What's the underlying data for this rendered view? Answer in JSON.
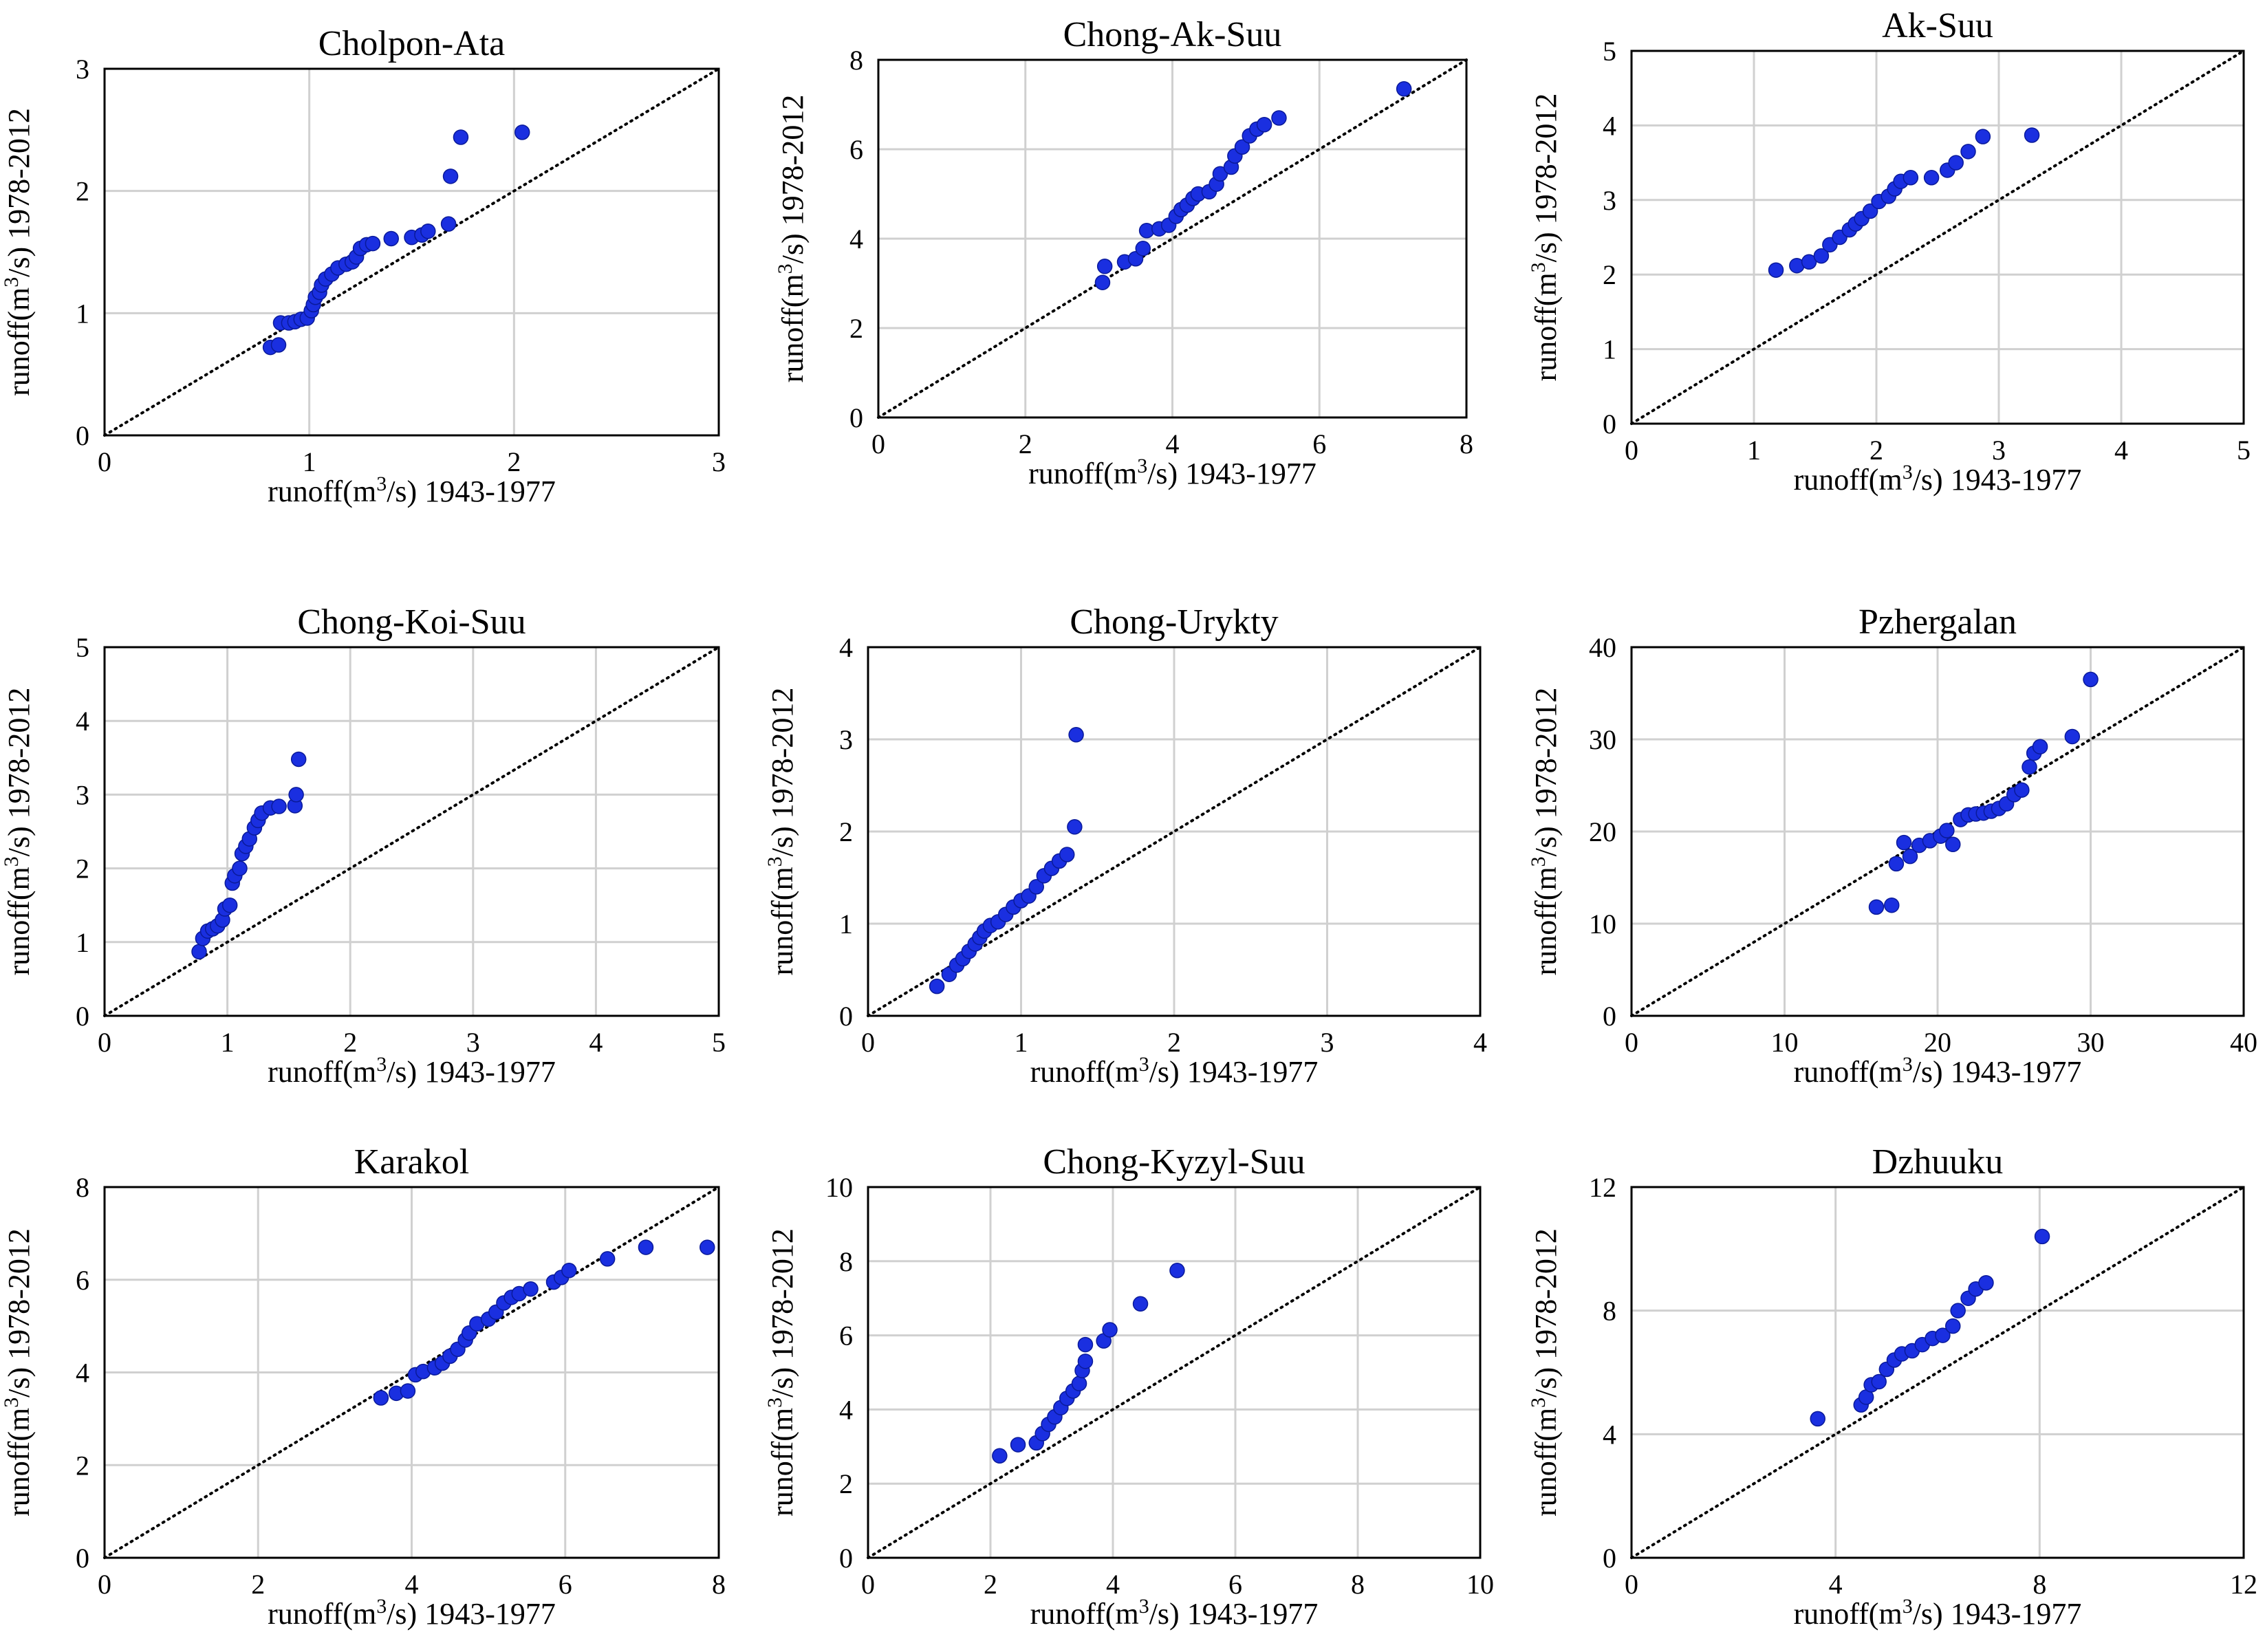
{
  "figure": {
    "x_label_prefix": "runoff(m",
    "x_label_unit_sup": "3",
    "x_label_suffix": "/s) 1943-1977",
    "y_label_prefix": "runoff(m",
    "y_label_unit_sup": "3",
    "y_label_suffix": "/s) 1978-2012",
    "point_color": "#1a2fe0",
    "point_stroke": "#0a1a9a",
    "grid_color": "#d0d0d0",
    "diagonal_color": "#000000"
  },
  "chart_data": [
    {
      "type": "scatter",
      "title": "Cholpon-Ata",
      "xlabel": "runoff(m3/s) 1943-1977",
      "ylabel": "runoff(m3/s) 1978-2012",
      "xlim": [
        0,
        3
      ],
      "ylim": [
        0,
        3
      ],
      "xticks": [
        0,
        1,
        2,
        3
      ],
      "yticks": [
        0,
        1,
        2,
        3
      ],
      "grid": true,
      "reference_line": "y = x (dotted)",
      "points": [
        [
          0.81,
          0.72
        ],
        [
          0.85,
          0.74
        ],
        [
          0.86,
          0.92
        ],
        [
          0.9,
          0.92
        ],
        [
          0.93,
          0.93
        ],
        [
          0.96,
          0.95
        ],
        [
          0.99,
          0.96
        ],
        [
          1.01,
          1.02
        ],
        [
          1.02,
          1.07
        ],
        [
          1.03,
          1.13
        ],
        [
          1.05,
          1.17
        ],
        [
          1.06,
          1.23
        ],
        [
          1.08,
          1.28
        ],
        [
          1.11,
          1.32
        ],
        [
          1.14,
          1.37
        ],
        [
          1.18,
          1.4
        ],
        [
          1.21,
          1.42
        ],
        [
          1.23,
          1.46
        ],
        [
          1.25,
          1.53
        ],
        [
          1.28,
          1.56
        ],
        [
          1.31,
          1.57
        ],
        [
          1.4,
          1.61
        ],
        [
          1.5,
          1.62
        ],
        [
          1.55,
          1.64
        ],
        [
          1.58,
          1.67
        ],
        [
          1.68,
          1.73
        ],
        [
          1.69,
          2.12
        ],
        [
          1.74,
          2.44
        ],
        [
          2.04,
          2.48
        ]
      ]
    },
    {
      "type": "scatter",
      "title": "Chong-Ak-Suu",
      "xlabel": "runoff(m3/s) 1943-1977",
      "ylabel": "runoff(m3/s) 1978-2012",
      "xlim": [
        0,
        8
      ],
      "ylim": [
        0,
        8
      ],
      "xticks": [
        0,
        2,
        4,
        6,
        8
      ],
      "yticks": [
        0,
        2,
        4,
        6,
        8
      ],
      "grid": true,
      "reference_line": "y = x (dotted)",
      "points": [
        [
          3.05,
          3.02
        ],
        [
          3.08,
          3.38
        ],
        [
          3.35,
          3.48
        ],
        [
          3.5,
          3.55
        ],
        [
          3.6,
          3.78
        ],
        [
          3.65,
          4.18
        ],
        [
          3.82,
          4.22
        ],
        [
          3.95,
          4.3
        ],
        [
          4.05,
          4.5
        ],
        [
          4.12,
          4.65
        ],
        [
          4.2,
          4.75
        ],
        [
          4.28,
          4.9
        ],
        [
          4.35,
          5.0
        ],
        [
          4.5,
          5.05
        ],
        [
          4.6,
          5.22
        ],
        [
          4.65,
          5.45
        ],
        [
          4.8,
          5.6
        ],
        [
          4.85,
          5.85
        ],
        [
          4.95,
          6.05
        ],
        [
          5.05,
          6.3
        ],
        [
          5.15,
          6.45
        ],
        [
          5.25,
          6.55
        ],
        [
          5.45,
          6.7
        ],
        [
          7.15,
          7.35
        ]
      ]
    },
    {
      "type": "scatter",
      "title": "Ak-Suu",
      "xlabel": "runoff(m3/s) 1943-1977",
      "ylabel": "runoff(m3/s) 1978-2012",
      "xlim": [
        0,
        5
      ],
      "ylim": [
        0,
        5
      ],
      "xticks": [
        0,
        1,
        2,
        3,
        4,
        5
      ],
      "yticks": [
        0,
        1,
        2,
        3,
        4,
        5
      ],
      "grid": true,
      "reference_line": "y = x (dotted)",
      "points": [
        [
          1.18,
          2.06
        ],
        [
          1.35,
          2.12
        ],
        [
          1.45,
          2.17
        ],
        [
          1.55,
          2.25
        ],
        [
          1.62,
          2.4
        ],
        [
          1.7,
          2.5
        ],
        [
          1.78,
          2.6
        ],
        [
          1.83,
          2.68
        ],
        [
          1.88,
          2.75
        ],
        [
          1.95,
          2.85
        ],
        [
          2.02,
          2.98
        ],
        [
          2.1,
          3.05
        ],
        [
          2.15,
          3.15
        ],
        [
          2.2,
          3.25
        ],
        [
          2.28,
          3.3
        ],
        [
          2.45,
          3.3
        ],
        [
          2.58,
          3.4
        ],
        [
          2.65,
          3.5
        ],
        [
          2.75,
          3.65
        ],
        [
          2.87,
          3.85
        ],
        [
          3.27,
          3.87
        ]
      ]
    },
    {
      "type": "scatter",
      "title": "Chong-Koi-Suu",
      "xlabel": "runoff(m3/s) 1943-1977",
      "ylabel": "runoff(m3/s) 1978-2012",
      "xlim": [
        0,
        5
      ],
      "ylim": [
        0,
        5
      ],
      "xticks": [
        0,
        1,
        2,
        3,
        4,
        5
      ],
      "yticks": [
        0,
        1,
        2,
        3,
        4,
        5
      ],
      "grid": true,
      "reference_line": "y = x (dotted)",
      "points": [
        [
          0.77,
          0.87
        ],
        [
          0.8,
          1.05
        ],
        [
          0.84,
          1.15
        ],
        [
          0.88,
          1.18
        ],
        [
          0.92,
          1.22
        ],
        [
          0.96,
          1.3
        ],
        [
          0.98,
          1.45
        ],
        [
          1.02,
          1.5
        ],
        [
          1.04,
          1.8
        ],
        [
          1.06,
          1.9
        ],
        [
          1.1,
          2.0
        ],
        [
          1.12,
          2.2
        ],
        [
          1.15,
          2.3
        ],
        [
          1.18,
          2.4
        ],
        [
          1.22,
          2.55
        ],
        [
          1.25,
          2.65
        ],
        [
          1.28,
          2.75
        ],
        [
          1.35,
          2.82
        ],
        [
          1.42,
          2.84
        ],
        [
          1.55,
          2.85
        ],
        [
          1.56,
          3.0
        ],
        [
          1.58,
          3.48
        ]
      ]
    },
    {
      "type": "scatter",
      "title": "Chong-Urykty",
      "xlabel": "runoff(m3/s) 1943-1977",
      "ylabel": "runoff(m3/s) 1978-2012",
      "xlim": [
        0,
        4
      ],
      "ylim": [
        0,
        4
      ],
      "xticks": [
        0,
        1,
        2,
        3,
        4
      ],
      "yticks": [
        0,
        1,
        2,
        3,
        4
      ],
      "grid": true,
      "reference_line": "y = x (dotted)",
      "points": [
        [
          0.45,
          0.32
        ],
        [
          0.53,
          0.45
        ],
        [
          0.58,
          0.55
        ],
        [
          0.62,
          0.62
        ],
        [
          0.66,
          0.7
        ],
        [
          0.7,
          0.78
        ],
        [
          0.73,
          0.85
        ],
        [
          0.76,
          0.92
        ],
        [
          0.8,
          0.98
        ],
        [
          0.85,
          1.02
        ],
        [
          0.9,
          1.1
        ],
        [
          0.95,
          1.18
        ],
        [
          1.0,
          1.25
        ],
        [
          1.05,
          1.3
        ],
        [
          1.1,
          1.4
        ],
        [
          1.15,
          1.52
        ],
        [
          1.2,
          1.6
        ],
        [
          1.25,
          1.68
        ],
        [
          1.3,
          1.75
        ],
        [
          1.35,
          2.05
        ],
        [
          1.36,
          3.05
        ]
      ]
    },
    {
      "type": "scatter",
      "title": "Pzhergalan",
      "xlabel": "runoff(m3/s) 1943-1977",
      "ylabel": "runoff(m3/s) 1978-2012",
      "xlim": [
        0,
        40
      ],
      "ylim": [
        0,
        40
      ],
      "xticks": [
        0,
        10,
        20,
        30,
        40
      ],
      "yticks": [
        0,
        10,
        20,
        30,
        40
      ],
      "grid": true,
      "reference_line": "y = x (dotted)",
      "points": [
        [
          16.0,
          11.8
        ],
        [
          17.0,
          12.0
        ],
        [
          17.3,
          16.5
        ],
        [
          17.8,
          18.8
        ],
        [
          18.2,
          17.3
        ],
        [
          18.8,
          18.5
        ],
        [
          19.5,
          19.0
        ],
        [
          20.2,
          19.5
        ],
        [
          20.6,
          20.1
        ],
        [
          21.0,
          18.6
        ],
        [
          21.5,
          21.3
        ],
        [
          22.0,
          21.8
        ],
        [
          22.5,
          21.9
        ],
        [
          23.0,
          22.0
        ],
        [
          23.5,
          22.2
        ],
        [
          24.0,
          22.5
        ],
        [
          24.5,
          23.0
        ],
        [
          25.0,
          24.0
        ],
        [
          25.5,
          24.5
        ],
        [
          26.0,
          27.0
        ],
        [
          26.3,
          28.5
        ],
        [
          26.7,
          29.2
        ],
        [
          28.8,
          30.3
        ],
        [
          30.0,
          36.5
        ]
      ]
    },
    {
      "type": "scatter",
      "title": "Karakol",
      "xlabel": "runoff(m3/s) 1943-1977",
      "ylabel": "runoff(m3/s) 1978-2012",
      "xlim": [
        0,
        8
      ],
      "ylim": [
        0,
        8
      ],
      "xticks": [
        0,
        2,
        4,
        6,
        8
      ],
      "yticks": [
        0,
        2,
        4,
        6,
        8
      ],
      "grid": true,
      "reference_line": "y = x (dotted)",
      "points": [
        [
          3.6,
          3.45
        ],
        [
          3.8,
          3.55
        ],
        [
          3.95,
          3.6
        ],
        [
          4.05,
          3.95
        ],
        [
          4.15,
          4.02
        ],
        [
          4.3,
          4.1
        ],
        [
          4.4,
          4.2
        ],
        [
          4.5,
          4.35
        ],
        [
          4.6,
          4.5
        ],
        [
          4.7,
          4.7
        ],
        [
          4.75,
          4.85
        ],
        [
          4.85,
          5.05
        ],
        [
          5.0,
          5.15
        ],
        [
          5.1,
          5.3
        ],
        [
          5.2,
          5.5
        ],
        [
          5.3,
          5.62
        ],
        [
          5.4,
          5.7
        ],
        [
          5.55,
          5.8
        ],
        [
          5.85,
          5.95
        ],
        [
          5.95,
          6.05
        ],
        [
          6.05,
          6.2
        ],
        [
          6.55,
          6.45
        ],
        [
          7.05,
          6.7
        ],
        [
          7.85,
          6.7
        ]
      ]
    },
    {
      "type": "scatter",
      "title": "Chong-Kyzyl-Suu",
      "xlabel": "runoff(m3/s) 1943-1977",
      "ylabel": "runoff(m3/s) 1978-2012",
      "xlim": [
        0,
        10
      ],
      "ylim": [
        0,
        10
      ],
      "xticks": [
        0,
        2,
        4,
        6,
        8,
        10
      ],
      "yticks": [
        0,
        2,
        4,
        6,
        8,
        10
      ],
      "grid": true,
      "reference_line": "y = x (dotted)",
      "points": [
        [
          2.15,
          2.75
        ],
        [
          2.45,
          3.05
        ],
        [
          2.75,
          3.1
        ],
        [
          2.85,
          3.35
        ],
        [
          2.95,
          3.6
        ],
        [
          3.05,
          3.8
        ],
        [
          3.15,
          4.05
        ],
        [
          3.25,
          4.3
        ],
        [
          3.35,
          4.5
        ],
        [
          3.45,
          4.7
        ],
        [
          3.5,
          5.05
        ],
        [
          3.55,
          5.3
        ],
        [
          3.55,
          5.75
        ],
        [
          3.85,
          5.85
        ],
        [
          3.95,
          6.15
        ],
        [
          4.45,
          6.85
        ],
        [
          5.05,
          7.75
        ]
      ]
    },
    {
      "type": "scatter",
      "title": "Dzhuuku",
      "xlabel": "runoff(m3/s) 1943-1977",
      "ylabel": "runoff(m3/s) 1978-2012",
      "xlim": [
        0,
        12
      ],
      "ylim": [
        0,
        12
      ],
      "xticks": [
        0,
        4,
        8,
        12
      ],
      "yticks": [
        0,
        4,
        8,
        12
      ],
      "grid": true,
      "reference_line": "y = x (dotted)",
      "points": [
        [
          3.65,
          4.5
        ],
        [
          4.5,
          4.95
        ],
        [
          4.6,
          5.2
        ],
        [
          4.7,
          5.6
        ],
        [
          4.85,
          5.7
        ],
        [
          5.0,
          6.1
        ],
        [
          5.15,
          6.4
        ],
        [
          5.3,
          6.6
        ],
        [
          5.5,
          6.7
        ],
        [
          5.7,
          6.9
        ],
        [
          5.9,
          7.1
        ],
        [
          6.1,
          7.2
        ],
        [
          6.3,
          7.5
        ],
        [
          6.4,
          8.0
        ],
        [
          6.6,
          8.4
        ],
        [
          6.75,
          8.7
        ],
        [
          6.95,
          8.9
        ],
        [
          8.05,
          10.4
        ]
      ]
    }
  ]
}
